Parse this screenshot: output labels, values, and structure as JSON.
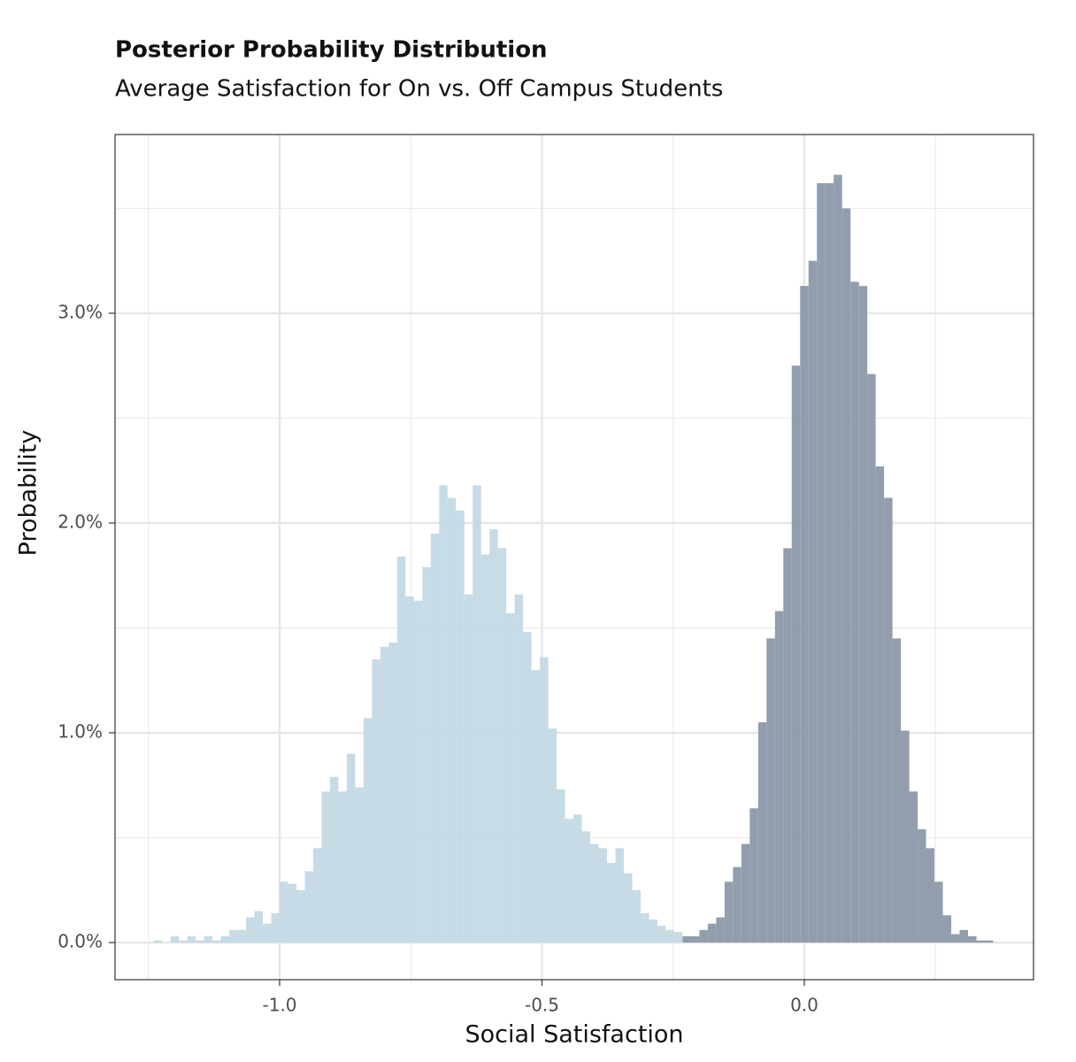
{
  "chart_data": {
    "type": "histogram",
    "title": "Posterior Probability Distribution",
    "subtitle": "Average Satisfaction for On vs. Off Campus Students",
    "x_label": "Social Satisfaction",
    "y_label": "Probability",
    "bins": [
      -1.24,
      -1.224,
      -1.208,
      -1.192,
      -1.176,
      -1.16,
      -1.144,
      -1.128,
      -1.112,
      -1.096,
      -1.08,
      -1.064,
      -1.048,
      -1.032,
      -1.016,
      -1.0,
      -0.984,
      -0.968,
      -0.952,
      -0.936,
      -0.92,
      -0.904,
      -0.888,
      -0.872,
      -0.856,
      -0.84,
      -0.824,
      -0.808,
      -0.792,
      -0.776,
      -0.76,
      -0.744,
      -0.728,
      -0.712,
      -0.696,
      -0.68,
      -0.664,
      -0.648,
      -0.632,
      -0.616,
      -0.6,
      -0.584,
      -0.568,
      -0.552,
      -0.536,
      -0.52,
      -0.504,
      -0.488,
      -0.472,
      -0.456,
      -0.44,
      -0.424,
      -0.408,
      -0.392,
      -0.376,
      -0.36,
      -0.344,
      -0.328,
      -0.312,
      -0.296,
      -0.28,
      -0.264,
      -0.248,
      -0.232,
      -0.216,
      -0.2,
      -0.184,
      -0.168,
      -0.152,
      -0.136,
      -0.12,
      -0.104,
      -0.088,
      -0.072,
      -0.056,
      -0.04,
      -0.024,
      -0.008,
      0.008,
      0.024,
      0.04,
      0.056,
      0.072,
      0.088,
      0.104,
      0.12,
      0.136,
      0.152,
      0.168,
      0.184,
      0.2,
      0.216,
      0.232,
      0.248,
      0.264,
      0.28,
      0.296,
      0.312,
      0.328,
      0.344,
      0.36
    ],
    "series": [
      {
        "color": "#c3d9e4",
        "values": [
          0.01,
          0,
          0.03,
          0.01,
          0.03,
          0.01,
          0.03,
          0.01,
          0.03,
          0.06,
          0.06,
          0.12,
          0.15,
          0.09,
          0.14,
          0.29,
          0.28,
          0.25,
          0.34,
          0.45,
          0.72,
          0.79,
          0.72,
          0.9,
          0.74,
          1.07,
          1.35,
          1.41,
          1.43,
          1.84,
          1.65,
          1.63,
          1.79,
          1.95,
          2.18,
          2.12,
          2.06,
          1.66,
          2.18,
          1.85,
          1.97,
          1.88,
          1.57,
          1.66,
          1.48,
          1.3,
          1.36,
          1.02,
          0.73,
          0.59,
          0.61,
          0.53,
          0.47,
          0.45,
          0.38,
          0.45,
          0.33,
          0.25,
          0.14,
          0.11,
          0.08,
          0.06,
          0.05,
          0.03,
          0,
          0,
          0,
          0,
          0,
          0,
          0,
          0,
          0,
          0,
          0,
          0,
          0,
          0,
          0,
          0,
          0,
          0,
          0,
          0,
          0,
          0,
          0,
          0,
          0,
          0,
          0,
          0,
          0,
          0,
          0,
          0,
          0,
          0,
          0,
          0
        ]
      },
      {
        "color": "#8c99a9",
        "values": [
          0,
          0,
          0,
          0,
          0,
          0,
          0,
          0,
          0,
          0,
          0,
          0,
          0,
          0,
          0,
          0,
          0,
          0,
          0,
          0,
          0,
          0,
          0,
          0,
          0,
          0,
          0,
          0,
          0,
          0,
          0,
          0,
          0,
          0,
          0,
          0,
          0,
          0,
          0,
          0,
          0,
          0,
          0,
          0,
          0,
          0,
          0,
          0,
          0,
          0,
          0,
          0,
          0,
          0,
          0,
          0,
          0,
          0,
          0,
          0,
          0,
          0,
          0,
          0.03,
          0.03,
          0.06,
          0.09,
          0.12,
          0.29,
          0.36,
          0.47,
          0.64,
          1.05,
          1.45,
          1.58,
          1.88,
          2.75,
          3.13,
          3.25,
          3.62,
          3.62,
          3.66,
          3.5,
          3.15,
          3.13,
          2.71,
          2.27,
          2.12,
          1.45,
          1.01,
          0.72,
          0.54,
          0.45,
          0.29,
          0.13,
          0.04,
          0.06,
          0.03,
          0.01,
          0.01
        ]
      }
    ],
    "xlim": [
      -1.3137,
      0.4368
    ],
    "ylim": [
      -0.177,
      3.852
    ],
    "xticks": [
      {
        "value": -1,
        "label": "-1.0"
      },
      {
        "value": -0.5,
        "label": "-0.5"
      },
      {
        "value": 0,
        "label": "0.0"
      }
    ],
    "yticks": [
      {
        "value": 0,
        "label": "0.0%"
      },
      {
        "value": 1,
        "label": "1.0%"
      },
      {
        "value": 2,
        "label": "2.0%"
      },
      {
        "value": 3,
        "label": "3.0%"
      }
    ],
    "x_minor_grid": [
      -1.25,
      -0.75,
      -0.25,
      0.25
    ],
    "y_minor_grid": [
      0.5,
      1.5,
      2.5,
      3.5
    ],
    "grid": true
  }
}
